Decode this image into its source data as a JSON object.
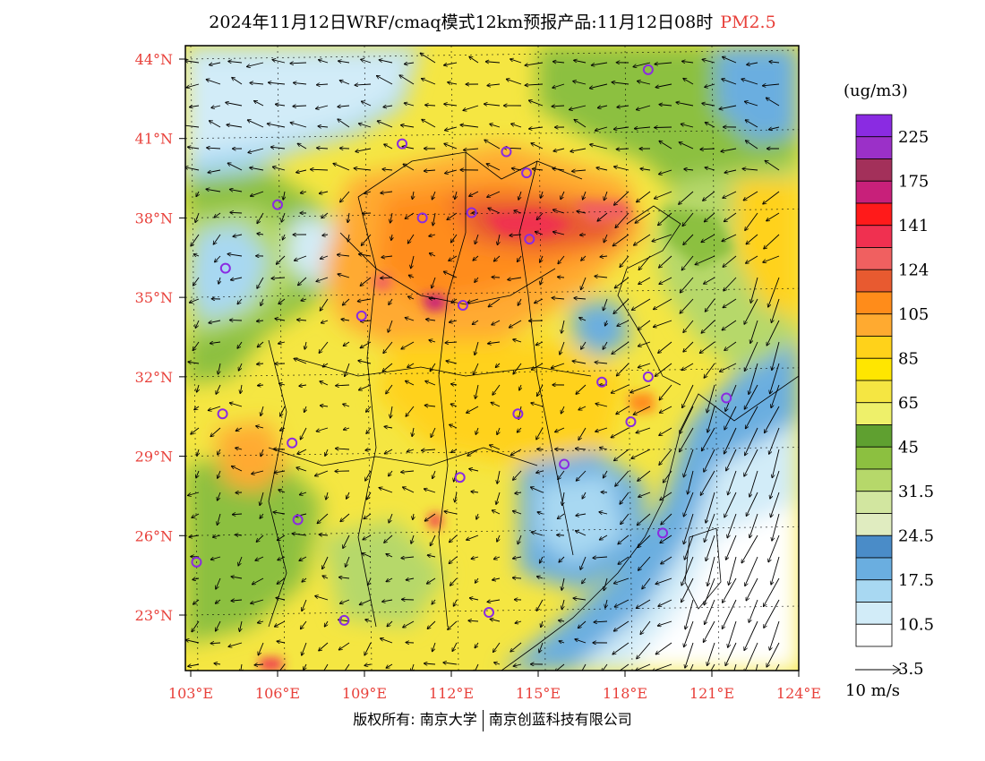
{
  "title": {
    "main": "2024年11月12日WRF/cmaq模式12km预报产品:11月12日08时",
    "pollutant": "PM2.5"
  },
  "axes": {
    "lat_labels": [
      "44°N",
      "41°N",
      "38°N",
      "35°N",
      "32°N",
      "29°N",
      "26°N",
      "23°N"
    ],
    "lon_labels": [
      "103°E",
      "106°E",
      "109°E",
      "112°E",
      "115°E",
      "118°E",
      "121°E",
      "124°E"
    ],
    "lat_values": [
      44,
      41,
      38,
      35,
      32,
      29,
      26,
      23
    ],
    "lon_values": [
      103,
      106,
      109,
      112,
      115,
      118,
      121,
      124
    ]
  },
  "colorbar": {
    "unit": "(ug/m3)",
    "labels": [
      "225",
      "175",
      "141",
      "124",
      "105",
      "85",
      "65",
      "45",
      "31.5",
      "24.5",
      "17.5",
      "10.5",
      "3.5"
    ],
    "colors": [
      "#8a2be2",
      "#9b30c8",
      "#a3305a",
      "#c8207a",
      "#ff1a1a",
      "#f03050",
      "#f06060",
      "#e85a30",
      "#ff8c1a",
      "#ffaa30",
      "#ffd21a",
      "#ffe600",
      "#f5e642",
      "#eef06a",
      "#5fa030",
      "#8cc040",
      "#b6d86a",
      "#d2e6a0",
      "#e0ecc0",
      "#4a8cc8",
      "#6aaee0",
      "#a8d8f2",
      "#d2ecf8",
      "#ffffff"
    ]
  },
  "wind_legend": {
    "label": "10 m/s"
  },
  "stations": [
    [
      118.8,
      43.6
    ],
    [
      103.2,
      25.0
    ],
    [
      104.2,
      36.1
    ],
    [
      106.0,
      38.5
    ],
    [
      110.3,
      40.8
    ],
    [
      111.0,
      38.0
    ],
    [
      112.7,
      38.2
    ],
    [
      113.9,
      40.5
    ],
    [
      114.6,
      39.7
    ],
    [
      114.7,
      37.2
    ],
    [
      112.4,
      34.7
    ],
    [
      108.9,
      34.3
    ],
    [
      104.1,
      30.6
    ],
    [
      106.5,
      29.5
    ],
    [
      106.7,
      26.6
    ],
    [
      108.3,
      22.8
    ],
    [
      112.3,
      28.2
    ],
    [
      113.3,
      23.1
    ],
    [
      114.3,
      30.6
    ],
    [
      115.9,
      28.7
    ],
    [
      117.2,
      31.8
    ],
    [
      118.8,
      32.0
    ],
    [
      121.5,
      31.2
    ],
    [
      118.2,
      30.3
    ],
    [
      119.3,
      26.1
    ]
  ],
  "footer": {
    "left": "版权所有: 南京大学",
    "right": "南京创蓝科技有限公司"
  }
}
